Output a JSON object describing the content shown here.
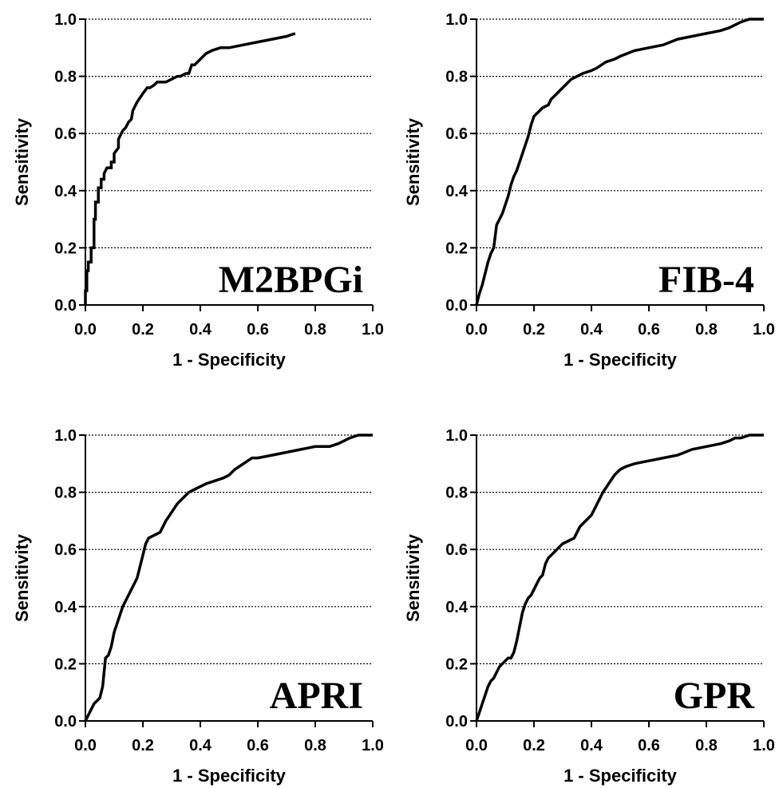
{
  "chart_data": [
    {
      "type": "line",
      "title": "",
      "panel_label": "M2BPGi",
      "xlabel": "1 - Specificity",
      "ylabel": "Sensitivity",
      "xlim": [
        0,
        1
      ],
      "ylim": [
        0,
        1
      ],
      "xticks": [
        "0.0",
        "0.2",
        "0.4",
        "0.6",
        "0.8",
        "1.0"
      ],
      "yticks": [
        "0.0",
        "0.2",
        "0.4",
        "0.6",
        "0.8",
        "1.0"
      ],
      "grid": "horizontal dotted",
      "series": [
        {
          "color": "#000000",
          "x": [
            0,
            0,
            0.005,
            0.005,
            0.01,
            0.01,
            0.02,
            0.02,
            0.03,
            0.03,
            0.035,
            0.035,
            0.045,
            0.045,
            0.055,
            0.055,
            0.065,
            0.065,
            0.075,
            0.09,
            0.09,
            0.1,
            0.1,
            0.115,
            0.115,
            0.125,
            0.13,
            0.14,
            0.15,
            0.16,
            0.165,
            0.175,
            0.18,
            0.2,
            0.215,
            0.225,
            0.24,
            0.25,
            0.26,
            0.28,
            0.3,
            0.32,
            0.33,
            0.35,
            0.36,
            0.37,
            0.38,
            0.4,
            0.42,
            0.44,
            0.47,
            0.5,
            0.55,
            0.6,
            0.65,
            0.7,
            0.73
          ],
          "y": [
            0,
            0.05,
            0.05,
            0.12,
            0.12,
            0.15,
            0.15,
            0.2,
            0.2,
            0.3,
            0.3,
            0.36,
            0.36,
            0.41,
            0.41,
            0.44,
            0.44,
            0.46,
            0.48,
            0.48,
            0.5,
            0.5,
            0.53,
            0.55,
            0.58,
            0.6,
            0.61,
            0.62,
            0.64,
            0.65,
            0.68,
            0.7,
            0.71,
            0.74,
            0.76,
            0.76,
            0.77,
            0.78,
            0.78,
            0.78,
            0.79,
            0.8,
            0.8,
            0.81,
            0.81,
            0.84,
            0.84,
            0.86,
            0.88,
            0.89,
            0.9,
            0.9,
            0.91,
            0.92,
            0.93,
            0.94,
            0.95
          ]
        }
      ]
    },
    {
      "type": "line",
      "title": "",
      "panel_label": "FIB-4",
      "xlabel": "1 - Specificity",
      "ylabel": "Sensitivity",
      "xlim": [
        0,
        1
      ],
      "ylim": [
        0,
        1
      ],
      "xticks": [
        "0.0",
        "0.2",
        "0.4",
        "0.6",
        "0.8",
        "1.0"
      ],
      "yticks": [
        "0.0",
        "0.2",
        "0.4",
        "0.6",
        "0.8",
        "1.0"
      ],
      "grid": "horizontal dotted",
      "series": [
        {
          "color": "#000000",
          "x": [
            0,
            0.01,
            0.02,
            0.03,
            0.04,
            0.05,
            0.06,
            0.065,
            0.07,
            0.08,
            0.09,
            0.1,
            0.11,
            0.12,
            0.13,
            0.14,
            0.15,
            0.16,
            0.17,
            0.18,
            0.19,
            0.2,
            0.21,
            0.22,
            0.23,
            0.25,
            0.26,
            0.27,
            0.28,
            0.3,
            0.31,
            0.32,
            0.33,
            0.35,
            0.37,
            0.4,
            0.42,
            0.45,
            0.48,
            0.5,
            0.55,
            0.6,
            0.65,
            0.7,
            0.75,
            0.8,
            0.85,
            0.88,
            0.9,
            0.92,
            0.95,
            1.0
          ],
          "y": [
            0,
            0.04,
            0.07,
            0.11,
            0.15,
            0.18,
            0.2,
            0.24,
            0.28,
            0.3,
            0.32,
            0.35,
            0.38,
            0.42,
            0.45,
            0.47,
            0.5,
            0.53,
            0.56,
            0.59,
            0.63,
            0.66,
            0.67,
            0.68,
            0.69,
            0.7,
            0.72,
            0.73,
            0.74,
            0.76,
            0.77,
            0.78,
            0.79,
            0.8,
            0.81,
            0.82,
            0.83,
            0.85,
            0.86,
            0.87,
            0.89,
            0.9,
            0.91,
            0.93,
            0.94,
            0.95,
            0.96,
            0.97,
            0.98,
            0.99,
            1.0,
            1.0
          ]
        }
      ]
    },
    {
      "type": "line",
      "title": "",
      "panel_label": "APRI",
      "xlabel": "1 - Specificity",
      "ylabel": "Sensitivity",
      "xlim": [
        0,
        1
      ],
      "ylim": [
        0,
        1
      ],
      "xticks": [
        "0.0",
        "0.2",
        "0.4",
        "0.6",
        "0.8",
        "1.0"
      ],
      "yticks": [
        "0.0",
        "0.2",
        "0.4",
        "0.6",
        "0.8",
        "1.0"
      ],
      "grid": "horizontal dotted",
      "series": [
        {
          "color": "#000000",
          "x": [
            0,
            0.01,
            0.02,
            0.03,
            0.04,
            0.05,
            0.06,
            0.065,
            0.07,
            0.08,
            0.09,
            0.1,
            0.11,
            0.12,
            0.13,
            0.14,
            0.15,
            0.16,
            0.17,
            0.18,
            0.19,
            0.2,
            0.21,
            0.22,
            0.24,
            0.26,
            0.27,
            0.28,
            0.3,
            0.32,
            0.34,
            0.36,
            0.38,
            0.4,
            0.42,
            0.45,
            0.48,
            0.5,
            0.52,
            0.55,
            0.58,
            0.6,
            0.65,
            0.7,
            0.75,
            0.8,
            0.85,
            0.88,
            0.9,
            0.92,
            0.95,
            1.0
          ],
          "y": [
            0,
            0.02,
            0.04,
            0.06,
            0.07,
            0.08,
            0.12,
            0.17,
            0.22,
            0.23,
            0.26,
            0.31,
            0.34,
            0.37,
            0.4,
            0.42,
            0.44,
            0.46,
            0.48,
            0.5,
            0.54,
            0.58,
            0.62,
            0.64,
            0.65,
            0.66,
            0.68,
            0.7,
            0.73,
            0.76,
            0.78,
            0.8,
            0.81,
            0.82,
            0.83,
            0.84,
            0.85,
            0.86,
            0.88,
            0.9,
            0.92,
            0.92,
            0.93,
            0.94,
            0.95,
            0.96,
            0.96,
            0.97,
            0.98,
            0.99,
            1.0,
            1.0
          ]
        }
      ]
    },
    {
      "type": "line",
      "title": "",
      "panel_label": "GPR",
      "xlabel": "1 - Specificity",
      "ylabel": "Sensitivity",
      "xlim": [
        0,
        1
      ],
      "ylim": [
        0,
        1
      ],
      "xticks": [
        "0.0",
        "0.2",
        "0.4",
        "0.6",
        "0.8",
        "1.0"
      ],
      "yticks": [
        "0.0",
        "0.2",
        "0.4",
        "0.6",
        "0.8",
        "1.0"
      ],
      "grid": "horizontal dotted",
      "series": [
        {
          "color": "#000000",
          "x": [
            0,
            0.01,
            0.02,
            0.03,
            0.04,
            0.05,
            0.06,
            0.07,
            0.08,
            0.1,
            0.11,
            0.12,
            0.13,
            0.14,
            0.15,
            0.16,
            0.17,
            0.18,
            0.19,
            0.2,
            0.21,
            0.22,
            0.23,
            0.24,
            0.25,
            0.26,
            0.28,
            0.3,
            0.32,
            0.34,
            0.35,
            0.36,
            0.38,
            0.4,
            0.42,
            0.44,
            0.46,
            0.48,
            0.5,
            0.52,
            0.55,
            0.6,
            0.65,
            0.7,
            0.75,
            0.8,
            0.85,
            0.88,
            0.9,
            0.92,
            0.95,
            1.0
          ],
          "y": [
            0,
            0.03,
            0.06,
            0.09,
            0.12,
            0.14,
            0.15,
            0.17,
            0.19,
            0.21,
            0.22,
            0.22,
            0.24,
            0.28,
            0.33,
            0.38,
            0.41,
            0.43,
            0.44,
            0.46,
            0.48,
            0.5,
            0.51,
            0.55,
            0.57,
            0.58,
            0.6,
            0.62,
            0.63,
            0.64,
            0.66,
            0.68,
            0.7,
            0.72,
            0.76,
            0.8,
            0.83,
            0.86,
            0.88,
            0.89,
            0.9,
            0.91,
            0.92,
            0.93,
            0.95,
            0.96,
            0.97,
            0.98,
            0.99,
            0.99,
            1.0,
            1.0
          ]
        }
      ]
    }
  ]
}
